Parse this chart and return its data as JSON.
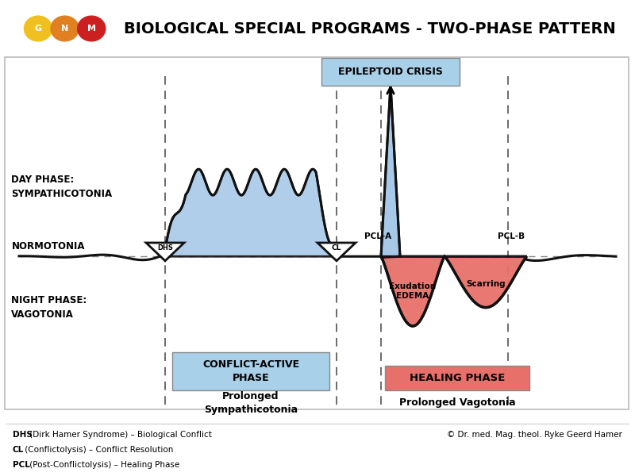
{
  "title": "BIOLOGICAL SPECIAL PROGRAMS - TWO-PHASE PATTERN",
  "title_fontsize": 15,
  "bg_color": "#ffffff",
  "blue_fill": "#a8c8e8",
  "red_fill": "#e8706a",
  "blue_box_fill": "#a8d0e8",
  "red_box_fill": "#e8706a",
  "epilepsy_box_fill": "#a8d0e8",
  "line_color": "#111111",
  "dashed_color": "#888888",
  "gnm_colors": [
    "#f0c020",
    "#e08020",
    "#cc2020"
  ],
  "gnm_letters": [
    "G",
    "N",
    "M"
  ],
  "footnote_lines": [
    [
      "DHS",
      " (Dirk Hamer Syndrome) – Biological Conflict"
    ],
    [
      "CL",
      " (Conflictolysis) – Conflict Resolution"
    ],
    [
      "PCL",
      " (Post-Conflictolysis) – Healing Phase"
    ]
  ],
  "copyright": "© Dr. med. Mag. theol. Ryke Geerd Hamer",
  "labels": {
    "day_phase": "DAY PHASE:\nSYMPATHICOTONIA",
    "normotonia": "NORMOTONIA",
    "night_phase": "NIGHT PHASE:\nVAGOTONIA",
    "dhs": "DHS",
    "cl": "CL",
    "pcl_a": "PCL-A",
    "pcl_b": "PCL-B",
    "conflict_active": "CONFLICT-ACTIVE\nPHASE",
    "healing_phase": "HEALING PHASE",
    "epileptoid": "EPILEPTOID CRISIS",
    "exudation": "Exudation\nEDEMA",
    "scarring": "Scarring",
    "prolonged_symp": "Prolonged\nSympathicotonia",
    "prolonged_vago": "Prolonged Vagotonia"
  }
}
